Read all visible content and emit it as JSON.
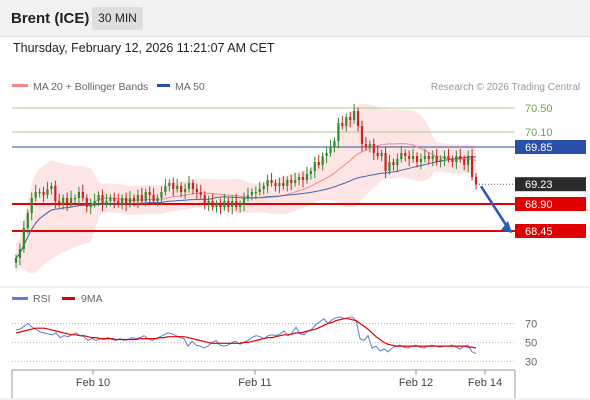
{
  "header": {
    "instrument": "Brent (ICE)",
    "timeframe_label": "30 MIN",
    "datetime": "Thursday, February 12, 2026 11:21:07 AM CET"
  },
  "colors": {
    "bullish_candle": "#2e8b2e",
    "bearish_candle": "#cc2222",
    "bollinger_fill": "#fde0e0",
    "ma20": "#f08a8a",
    "ma50": "#4466aa",
    "resistance": "#a8d08d",
    "pivot": "#2a4fa8",
    "support": "#e00000",
    "rsi": "#5b7fd6",
    "rsi_ma": "#e00000",
    "arrow": "#2a5db0"
  },
  "chart_data": [
    {
      "type": "candlestick",
      "legend": [
        {
          "name": "MA 20 + Bollinger Bands",
          "color": "#f08a8a"
        },
        {
          "name": "MA 50",
          "color": "#2a4fa8"
        }
      ],
      "watermark": "Research © 2026 Trading Central",
      "ylim": [
        67.6,
        70.7
      ],
      "x_ticks": [
        "Feb 10",
        "Feb 11",
        "Feb 12",
        "Feb 14"
      ],
      "levels": [
        {
          "value": 70.5,
          "label": "70.50",
          "kind": "resistance"
        },
        {
          "value": 70.1,
          "label": "70.10",
          "kind": "resistance"
        },
        {
          "value": 69.85,
          "label": "69.85",
          "kind": "pivot"
        },
        {
          "value": 68.9,
          "label": "68.90",
          "kind": "support"
        },
        {
          "value": 68.45,
          "label": "68.45",
          "kind": "support"
        }
      ],
      "last_price": {
        "value": 69.23,
        "label": "69.23"
      },
      "close": [
        68.0,
        68.15,
        68.5,
        68.75,
        69.0,
        69.1,
        69.1,
        69.05,
        69.15,
        69.2,
        68.95,
        68.9,
        69.0,
        68.9,
        69.0,
        69.0,
        69.1,
        69.0,
        68.85,
        68.9,
        68.95,
        69.05,
        68.9,
        68.95,
        69.0,
        68.95,
        68.9,
        69.0,
        68.9,
        69.0,
        68.95,
        69.05,
        68.95,
        69.1,
        69.05,
        68.95,
        69.0,
        69.1,
        69.2,
        69.25,
        69.15,
        69.2,
        69.1,
        69.15,
        69.25,
        69.15,
        69.1,
        69.05,
        68.9,
        68.95,
        68.85,
        68.9,
        68.85,
        68.95,
        68.85,
        68.95,
        68.85,
        68.9,
        69.0,
        69.05,
        69.1,
        69.1,
        69.15,
        69.2,
        69.3,
        69.25,
        69.2,
        69.25,
        69.2,
        69.3,
        69.25,
        69.3,
        69.35,
        69.3,
        69.4,
        69.45,
        69.6,
        69.55,
        69.7,
        69.75,
        69.85,
        69.95,
        70.25,
        70.2,
        70.35,
        70.3,
        70.45,
        70.2,
        69.9,
        69.85,
        69.9,
        69.75,
        69.7,
        69.75,
        69.45,
        69.6,
        69.55,
        69.65,
        69.75,
        69.7,
        69.65,
        69.7,
        69.6,
        69.65,
        69.7,
        69.65,
        69.7,
        69.6,
        69.65,
        69.7,
        69.65,
        69.6,
        69.7,
        69.65,
        69.55,
        69.7,
        69.35,
        69.23
      ]
    },
    {
      "type": "line",
      "legend": [
        {
          "name": "RSI",
          "color": "#5b7fd6"
        },
        {
          "name": "9MA",
          "color": "#e00000"
        }
      ],
      "ylim": [
        25,
        80
      ],
      "y_ticks": [
        70,
        50,
        30
      ],
      "series": [
        {
          "name": "RSI",
          "values": [
            63,
            64,
            67,
            70,
            66,
            64,
            61,
            60,
            59,
            58,
            60,
            55,
            57,
            56,
            58,
            60,
            57,
            56,
            52,
            54,
            52,
            54,
            53,
            55,
            53,
            52,
            54,
            52,
            53,
            55,
            54,
            55,
            57,
            54,
            52,
            54,
            56,
            58,
            60,
            59,
            57,
            55,
            54,
            46,
            51,
            47,
            46,
            44,
            46,
            50,
            52,
            47,
            46,
            47,
            50,
            51,
            48,
            50,
            52,
            55,
            57,
            56,
            54,
            57,
            58,
            57,
            59,
            62,
            57,
            60,
            66,
            59,
            58,
            62,
            64,
            69,
            72,
            75,
            70,
            74,
            76,
            77,
            75,
            76,
            77,
            73,
            54,
            52,
            57,
            44,
            46,
            41,
            43,
            40,
            44,
            46,
            47,
            45,
            44,
            46,
            47,
            45,
            44,
            46,
            47,
            46,
            45,
            46,
            46,
            47,
            45,
            43,
            46,
            47,
            40,
            38
          ]
        },
        {
          "name": "9MA",
          "values": [
            60,
            61,
            62,
            63,
            64,
            65,
            65,
            65,
            64,
            63,
            62,
            61,
            60,
            59,
            58,
            58,
            57,
            57,
            56,
            55,
            55,
            54,
            54,
            54,
            54,
            53,
            53,
            53,
            53,
            53,
            53,
            54,
            54,
            54,
            54,
            54,
            55,
            55,
            56,
            56,
            56,
            56,
            56,
            55,
            54,
            53,
            52,
            51,
            50,
            49,
            49,
            49,
            49,
            49,
            49,
            49,
            49,
            50,
            50,
            51,
            52,
            53,
            54,
            55,
            55,
            56,
            57,
            58,
            58,
            59,
            60,
            60,
            61,
            62,
            63,
            64,
            66,
            68,
            70,
            71,
            73,
            74,
            75,
            75,
            74,
            73,
            70,
            67,
            64,
            60,
            56,
            53,
            50,
            48,
            47,
            46,
            46,
            46,
            46,
            46,
            46,
            46,
            46,
            46,
            46,
            46,
            46,
            46,
            46,
            46,
            46,
            46,
            46,
            45,
            45,
            44
          ]
        }
      ]
    }
  ]
}
